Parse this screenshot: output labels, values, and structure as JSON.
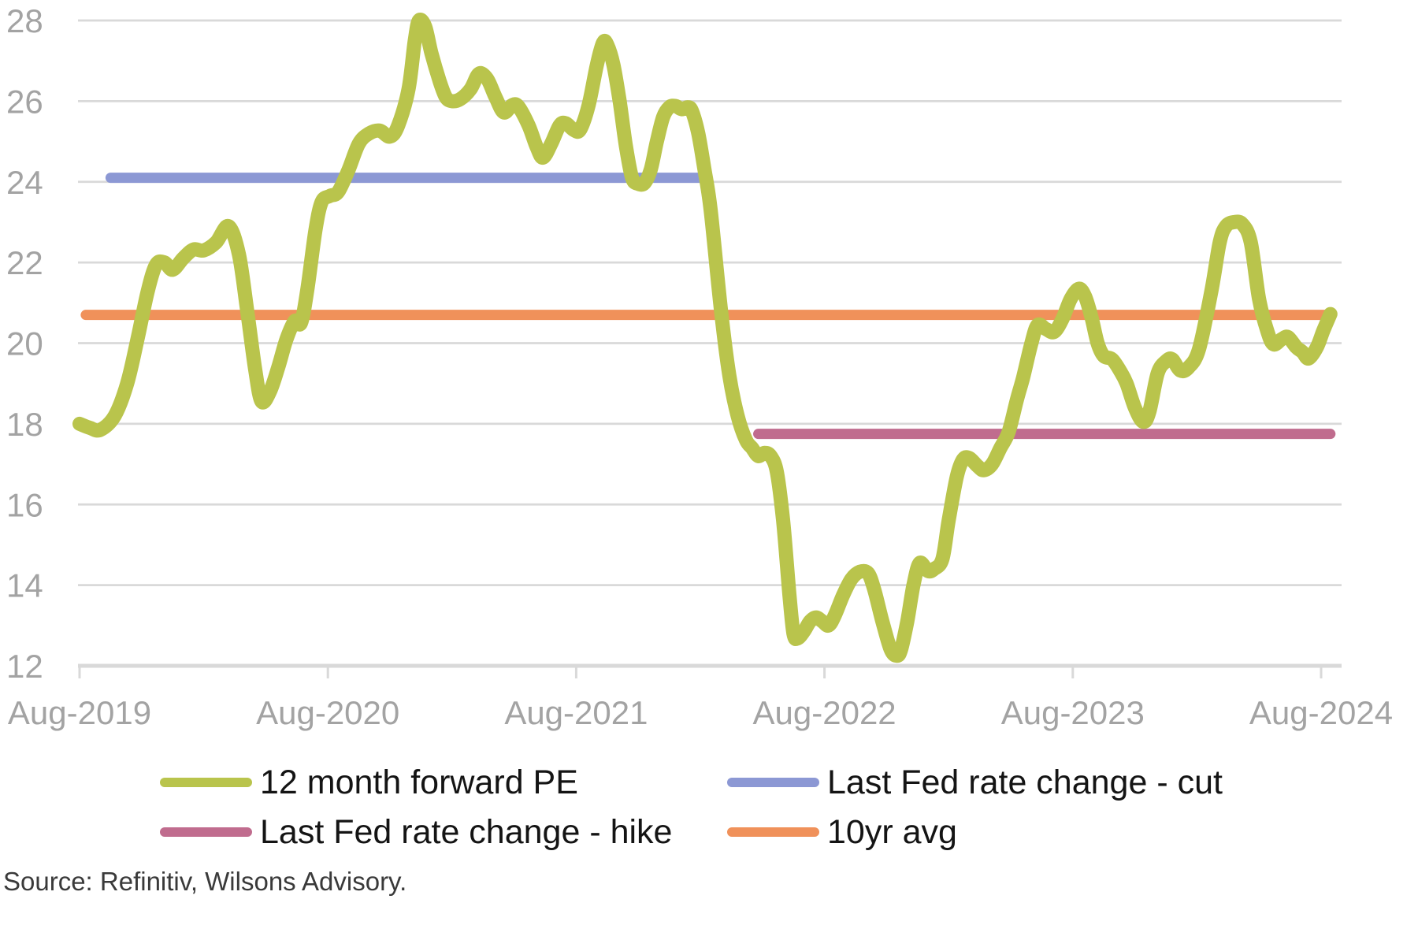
{
  "figure": {
    "source_note": "Source: Refinitiv, Wilsons Advisory."
  },
  "legend": {
    "items": [
      {
        "label": "12 month forward PE",
        "color": "#b9c44c"
      },
      {
        "label": "Last Fed rate change - cut",
        "color": "#8c98d4"
      },
      {
        "label": "Last Fed rate change - hike",
        "color": "#c06c8e"
      },
      {
        "label": "10yr avg",
        "color": "#f0915a"
      }
    ]
  },
  "chart_data": {
    "type": "line",
    "title": "",
    "xlabel": "",
    "ylabel": "",
    "grid": "horizontal",
    "legend_position": "bottom",
    "style": {
      "grid_color": "#d9d9d9",
      "axis_color": "#d9d9d9",
      "tick_label_color": "#a3a3a3",
      "background": "#ffffff"
    },
    "x_axis": {
      "unit": "months since Aug-2019",
      "range_months": [
        0,
        60
      ],
      "tick_months": [
        0,
        12,
        24,
        36,
        48,
        60
      ],
      "tick_labels": [
        "Aug-2019",
        "Aug-2020",
        "Aug-2021",
        "Aug-2022",
        "Aug-2023",
        "Aug-2024"
      ]
    },
    "y_axis": {
      "range": [
        12,
        28
      ],
      "ticks": [
        28,
        26,
        24,
        22,
        20,
        18,
        16,
        14,
        12
      ]
    },
    "series": [
      {
        "name": "12 month forward PE",
        "type": "spline",
        "color": "#b9c44c",
        "stroke_width": 18,
        "points": [
          [
            0,
            18.0
          ],
          [
            0.5,
            17.9
          ],
          [
            1,
            17.85
          ],
          [
            1.7,
            18.2
          ],
          [
            2.3,
            19.0
          ],
          [
            2.8,
            20.1
          ],
          [
            3.3,
            21.3
          ],
          [
            3.7,
            21.95
          ],
          [
            4.1,
            22.0
          ],
          [
            4.5,
            21.82
          ],
          [
            5,
            22.1
          ],
          [
            5.5,
            22.32
          ],
          [
            6,
            22.3
          ],
          [
            6.6,
            22.5
          ],
          [
            7.2,
            22.9
          ],
          [
            7.7,
            22.2
          ],
          [
            8.1,
            20.8
          ],
          [
            8.5,
            19.3
          ],
          [
            8.8,
            18.55
          ],
          [
            9.2,
            18.8
          ],
          [
            9.6,
            19.4
          ],
          [
            10,
            20.1
          ],
          [
            10.4,
            20.55
          ],
          [
            10.7,
            20.5
          ],
          [
            11,
            21.3
          ],
          [
            11.4,
            22.8
          ],
          [
            11.7,
            23.5
          ],
          [
            12.1,
            23.65
          ],
          [
            12.5,
            23.75
          ],
          [
            13,
            24.3
          ],
          [
            13.5,
            24.95
          ],
          [
            14,
            25.2
          ],
          [
            14.5,
            25.27
          ],
          [
            15,
            25.12
          ],
          [
            15.4,
            25.4
          ],
          [
            15.9,
            26.3
          ],
          [
            16.2,
            27.5
          ],
          [
            16.4,
            28.0
          ],
          [
            16.7,
            27.85
          ],
          [
            17,
            27.2
          ],
          [
            17.4,
            26.5
          ],
          [
            17.7,
            26.1
          ],
          [
            18,
            26.0
          ],
          [
            18.4,
            26.05
          ],
          [
            18.9,
            26.3
          ],
          [
            19.3,
            26.68
          ],
          [
            19.7,
            26.55
          ],
          [
            20.1,
            26.1
          ],
          [
            20.5,
            25.72
          ],
          [
            20.9,
            25.9
          ],
          [
            21.2,
            25.87
          ],
          [
            21.7,
            25.4
          ],
          [
            22.1,
            24.85
          ],
          [
            22.4,
            24.6
          ],
          [
            22.8,
            24.95
          ],
          [
            23.2,
            25.4
          ],
          [
            23.5,
            25.45
          ],
          [
            23.9,
            25.28
          ],
          [
            24.2,
            25.3
          ],
          [
            24.6,
            25.9
          ],
          [
            25,
            26.9
          ],
          [
            25.3,
            27.45
          ],
          [
            25.5,
            27.4
          ],
          [
            25.8,
            26.9
          ],
          [
            26.1,
            26.0
          ],
          [
            26.4,
            24.9
          ],
          [
            26.7,
            24.1
          ],
          [
            27,
            23.95
          ],
          [
            27.3,
            23.97
          ],
          [
            27.6,
            24.3
          ],
          [
            27.9,
            25.0
          ],
          [
            28.2,
            25.6
          ],
          [
            28.5,
            25.85
          ],
          [
            28.8,
            25.88
          ],
          [
            29.1,
            25.8
          ],
          [
            29.4,
            25.85
          ],
          [
            29.6,
            25.75
          ],
          [
            29.9,
            25.2
          ],
          [
            30.2,
            24.3
          ],
          [
            30.5,
            23.3
          ],
          [
            31,
            20.8
          ],
          [
            31.4,
            19.2
          ],
          [
            31.8,
            18.2
          ],
          [
            32.2,
            17.6
          ],
          [
            32.5,
            17.4
          ],
          [
            32.8,
            17.2
          ],
          [
            33.1,
            17.28
          ],
          [
            33.4,
            17.2
          ],
          [
            33.7,
            16.8
          ],
          [
            34,
            15.6
          ],
          [
            34.3,
            13.8
          ],
          [
            34.5,
            12.8
          ],
          [
            34.7,
            12.68
          ],
          [
            35,
            12.85
          ],
          [
            35.3,
            13.1
          ],
          [
            35.6,
            13.2
          ],
          [
            35.9,
            13.1
          ],
          [
            36.2,
            13.0
          ],
          [
            36.5,
            13.25
          ],
          [
            36.9,
            13.75
          ],
          [
            37.3,
            14.15
          ],
          [
            37.7,
            14.33
          ],
          [
            38.1,
            14.3
          ],
          [
            38.4,
            13.9
          ],
          [
            38.8,
            13.1
          ],
          [
            39.2,
            12.4
          ],
          [
            39.5,
            12.25
          ],
          [
            39.7,
            12.4
          ],
          [
            40,
            13.1
          ],
          [
            40.3,
            14.0
          ],
          [
            40.6,
            14.55
          ],
          [
            41,
            14.35
          ],
          [
            41.3,
            14.4
          ],
          [
            41.7,
            14.65
          ],
          [
            42,
            15.6
          ],
          [
            42.4,
            16.7
          ],
          [
            42.7,
            17.12
          ],
          [
            43,
            17.15
          ],
          [
            43.4,
            16.95
          ],
          [
            43.7,
            16.85
          ],
          [
            44.1,
            17.0
          ],
          [
            44.5,
            17.4
          ],
          [
            44.9,
            17.8
          ],
          [
            45.3,
            18.6
          ],
          [
            45.6,
            19.15
          ],
          [
            46,
            20.0
          ],
          [
            46.3,
            20.45
          ],
          [
            46.7,
            20.35
          ],
          [
            47.1,
            20.28
          ],
          [
            47.5,
            20.6
          ],
          [
            47.9,
            21.1
          ],
          [
            48.3,
            21.35
          ],
          [
            48.6,
            21.15
          ],
          [
            48.9,
            20.65
          ],
          [
            49.2,
            20.0
          ],
          [
            49.5,
            19.68
          ],
          [
            49.9,
            19.6
          ],
          [
            50.3,
            19.3
          ],
          [
            50.6,
            19.0
          ],
          [
            51,
            18.4
          ],
          [
            51.4,
            18.05
          ],
          [
            51.7,
            18.3
          ],
          [
            52.1,
            19.25
          ],
          [
            52.5,
            19.55
          ],
          [
            52.8,
            19.6
          ],
          [
            53.2,
            19.32
          ],
          [
            53.6,
            19.4
          ],
          [
            54.1,
            19.85
          ],
          [
            54.7,
            21.3
          ],
          [
            55.1,
            22.5
          ],
          [
            55.4,
            22.9
          ],
          [
            55.8,
            23.0
          ],
          [
            56.2,
            22.95
          ],
          [
            56.6,
            22.5
          ],
          [
            57,
            21.1
          ],
          [
            57.4,
            20.3
          ],
          [
            57.7,
            19.97
          ],
          [
            58.1,
            20.1
          ],
          [
            58.4,
            20.15
          ],
          [
            58.8,
            19.9
          ],
          [
            59.1,
            19.78
          ],
          [
            59.4,
            19.62
          ],
          [
            59.8,
            19.9
          ],
          [
            60.1,
            20.3
          ],
          [
            60.45,
            20.72
          ]
        ]
      },
      {
        "name": "Last Fed rate change - cut",
        "type": "hline",
        "color": "#8c98d4",
        "stroke_width": 13,
        "value": 24.1,
        "x_span_months": [
          1.5,
          30.2
        ]
      },
      {
        "name": "Last Fed rate change - hike",
        "type": "hline",
        "color": "#c06c8e",
        "stroke_width": 13,
        "value": 17.75,
        "x_span_months": [
          32.8,
          60.45
        ]
      },
      {
        "name": "10yr avg",
        "type": "hline",
        "color": "#f0915a",
        "stroke_width": 13,
        "value": 20.7,
        "x_span_months": [
          0.3,
          60.45
        ]
      }
    ]
  }
}
